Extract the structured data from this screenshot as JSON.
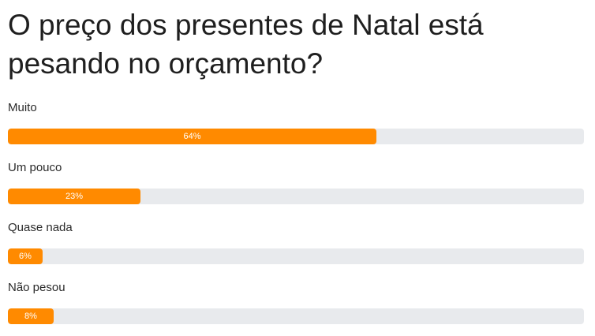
{
  "question": "O preço dos presentes de Natal está pesando no orçamento?",
  "colors": {
    "fill": "#ff8a00",
    "track": "#e8eaed"
  },
  "chart_data": {
    "type": "bar",
    "title": "O preço dos presentes de Natal está pesando no orçamento?",
    "orientation": "horizontal",
    "categories": [
      "Muito",
      "Um pouco",
      "Quase nada",
      "Não pesou"
    ],
    "values": [
      64,
      23,
      6,
      8
    ],
    "value_labels": [
      "64%",
      "23%",
      "6%",
      "8%"
    ],
    "xlim": [
      0,
      100
    ],
    "grid": false,
    "legend": "none"
  }
}
